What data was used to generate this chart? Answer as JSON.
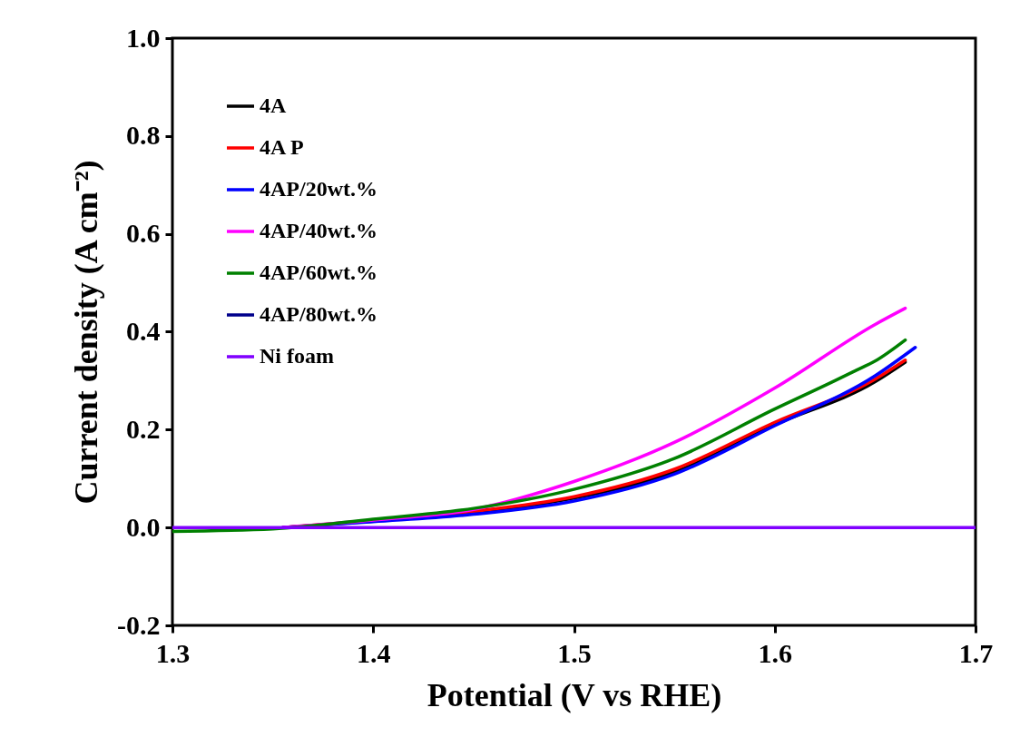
{
  "chart_data": {
    "type": "line",
    "xlabel": "Potential (V vs RHE)",
    "ylabel": "Current density (A cm⁻²)",
    "xlim": [
      1.3,
      1.7
    ],
    "xticks": [
      1.3,
      1.4,
      1.5,
      1.6,
      1.7
    ],
    "ylim": [
      -0.2,
      1.0
    ],
    "yticks": [
      {
        "value": -0.2,
        "label": "-0.2"
      },
      {
        "value": 0,
        "label": "0.0"
      },
      {
        "value": 0.2,
        "label": "0.2"
      },
      {
        "value": 0.4,
        "label": "0.4"
      },
      {
        "value": 0.6,
        "label": "0.6"
      },
      {
        "value": 0.8,
        "label": "0.8"
      },
      {
        "value": 1.0,
        "label": "1.0"
      }
    ],
    "grid": false,
    "legend": "top left",
    "marker": "none",
    "line_style": "solid",
    "series": [
      {
        "name": "4A",
        "color": "#000000",
        "x": [
          1.355,
          1.4,
          1.45,
          1.5,
          1.55,
          1.6,
          1.65,
          1.665
        ],
        "values": [
          0,
          0.013,
          0.031,
          0.06,
          0.113,
          0.21,
          0.298,
          0.338
        ]
      },
      {
        "name": "4A P",
        "color": "#ff0000",
        "x": [
          1.355,
          1.4,
          1.45,
          1.5,
          1.55,
          1.6,
          1.65,
          1.665
        ],
        "values": [
          0,
          0.014,
          0.033,
          0.063,
          0.119,
          0.215,
          0.303,
          0.342
        ]
      },
      {
        "name": "4AP/20wt.%",
        "color": "#0000ff",
        "x": [
          1.355,
          1.4,
          1.45,
          1.5,
          1.55,
          1.6,
          1.65,
          1.67
        ],
        "values": [
          0,
          0.012,
          0.027,
          0.054,
          0.109,
          0.208,
          0.31,
          0.368
        ]
      },
      {
        "name": "4AP/40wt.%",
        "color": "#ff00ff",
        "x": [
          1.355,
          1.4,
          1.45,
          1.5,
          1.55,
          1.6,
          1.65,
          1.665
        ],
        "values": [
          0,
          0.015,
          0.037,
          0.094,
          0.174,
          0.285,
          0.415,
          0.448
        ]
      },
      {
        "name": "4AP/60wt.%",
        "color": "#008000",
        "x": [
          1.3,
          1.35,
          1.4,
          1.45,
          1.5,
          1.55,
          1.6,
          1.63,
          1.64,
          1.65,
          1.665
        ],
        "values": [
          -0.008,
          -0.003,
          0.017,
          0.039,
          0.078,
          0.141,
          0.242,
          0.3,
          0.32,
          0.34,
          0.383
        ]
      },
      {
        "name": "4AP/80wt.%",
        "color": "#00008b"
      },
      {
        "name": "Ni foam",
        "color": "#8000ff",
        "x": [
          1.3,
          1.7
        ],
        "values": [
          0,
          0
        ]
      }
    ]
  }
}
